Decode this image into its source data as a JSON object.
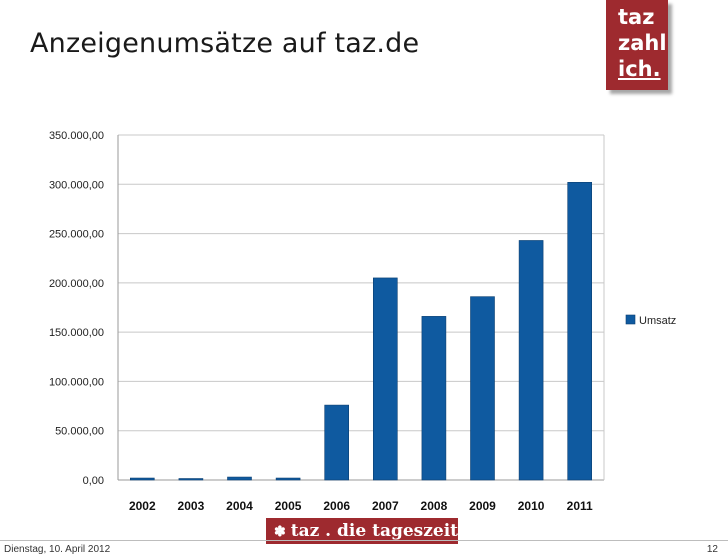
{
  "slide": {
    "title": "Anzeigenumsätze auf taz.de",
    "badge": {
      "line1": "taz",
      "line2": "zahl",
      "line3": "ich."
    },
    "footer": {
      "logo_text": "taz . die tageszeitung",
      "date": "Dienstag, 10. April 2012",
      "page": "12"
    }
  },
  "chart_data": {
    "type": "bar",
    "title": "",
    "xlabel": "",
    "ylabel": "",
    "categories": [
      "2002",
      "2003",
      "2004",
      "2005",
      "2006",
      "2007",
      "2008",
      "2009",
      "2010",
      "2011"
    ],
    "series": [
      {
        "name": "Umsatz",
        "color": "#0f5aa0",
        "values": [
          2000,
          1500,
          3000,
          2000,
          76000,
          205000,
          166000,
          186000,
          243000,
          302000
        ]
      }
    ],
    "ylim": [
      0,
      350000
    ],
    "yticks": [
      {
        "value": 0,
        "label": "0,00"
      },
      {
        "value": 50000,
        "label": "50.000,00"
      },
      {
        "value": 100000,
        "label": "100.000,00"
      },
      {
        "value": 150000,
        "label": "150.000,00"
      },
      {
        "value": 200000,
        "label": "200.000,00"
      },
      {
        "value": 250000,
        "label": "250.000,00"
      },
      {
        "value": 300000,
        "label": "300.000,00"
      },
      {
        "value": 350000,
        "label": "350.000,00"
      }
    ],
    "grid": true,
    "legend_position": "right"
  }
}
